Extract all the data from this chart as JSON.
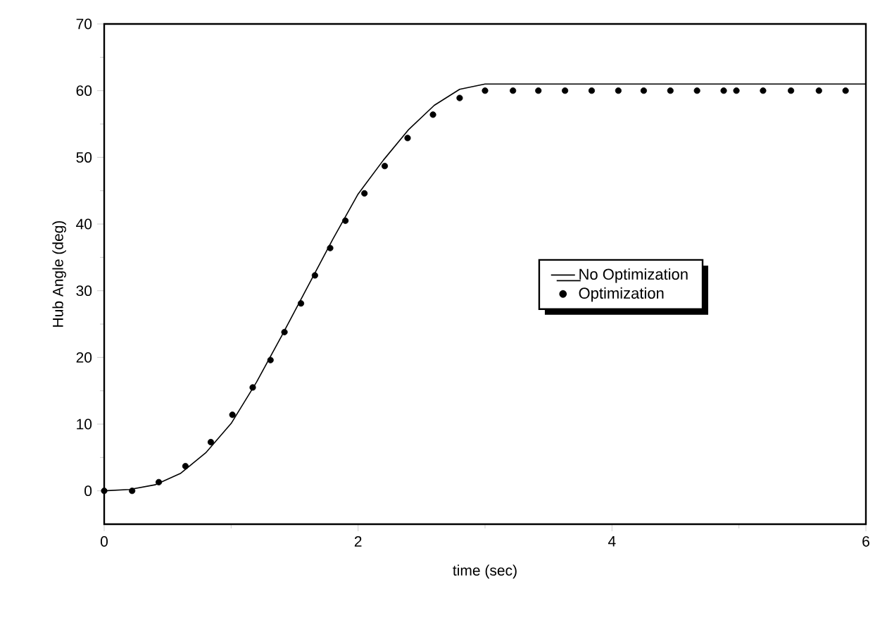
{
  "chart_data": {
    "type": "line",
    "xlabel": "time (sec)",
    "ylabel": "Hub Angle (deg)",
    "xlim": [
      0,
      6
    ],
    "ylim": [
      -5,
      70
    ],
    "xticks": [
      0,
      2,
      4,
      6
    ],
    "yticks": [
      0,
      10,
      20,
      30,
      40,
      50,
      60,
      70
    ],
    "grid": false,
    "legend": "right",
    "series": [
      {
        "name": "No Optimization",
        "color": "#000000",
        "line_style": "solid",
        "marker": "none",
        "x": [
          0,
          0.2,
          0.4,
          0.6,
          0.8,
          1.0,
          1.2,
          1.4,
          1.6,
          1.8,
          2.0,
          2.2,
          2.4,
          2.6,
          2.8,
          3.0,
          6.0
        ],
        "values": [
          0,
          0.2,
          0.9,
          2.6,
          5.7,
          10.1,
          16.3,
          23.3,
          30.5,
          37.7,
          44.5,
          49.6,
          54.2,
          57.8,
          60.2,
          61.0,
          61.0
        ]
      },
      {
        "name": "Optimization",
        "type": "scatter",
        "color": "#000000",
        "marker": "circle",
        "x": [
          0,
          0.22,
          0.43,
          0.64,
          0.84,
          1.01,
          1.17,
          1.31,
          1.42,
          1.55,
          1.66,
          1.78,
          1.9,
          2.05,
          2.21,
          2.39,
          2.59,
          2.8,
          3.0,
          3.22,
          3.42,
          3.63,
          3.84,
          4.05,
          4.25,
          4.46,
          4.67,
          4.88,
          4.98,
          5.19,
          5.41,
          5.63,
          5.84
        ],
        "values": [
          0,
          0,
          1.3,
          3.7,
          7.3,
          11.4,
          15.5,
          19.6,
          23.8,
          28.1,
          32.3,
          36.4,
          40.5,
          44.6,
          48.7,
          52.9,
          56.4,
          58.9,
          60.0,
          60.0,
          60.0,
          60.0,
          60.0,
          60.0,
          60.0,
          60.0,
          60.0,
          60.0,
          60.0,
          60.0,
          60.0,
          60.0,
          60.0
        ]
      }
    ]
  }
}
